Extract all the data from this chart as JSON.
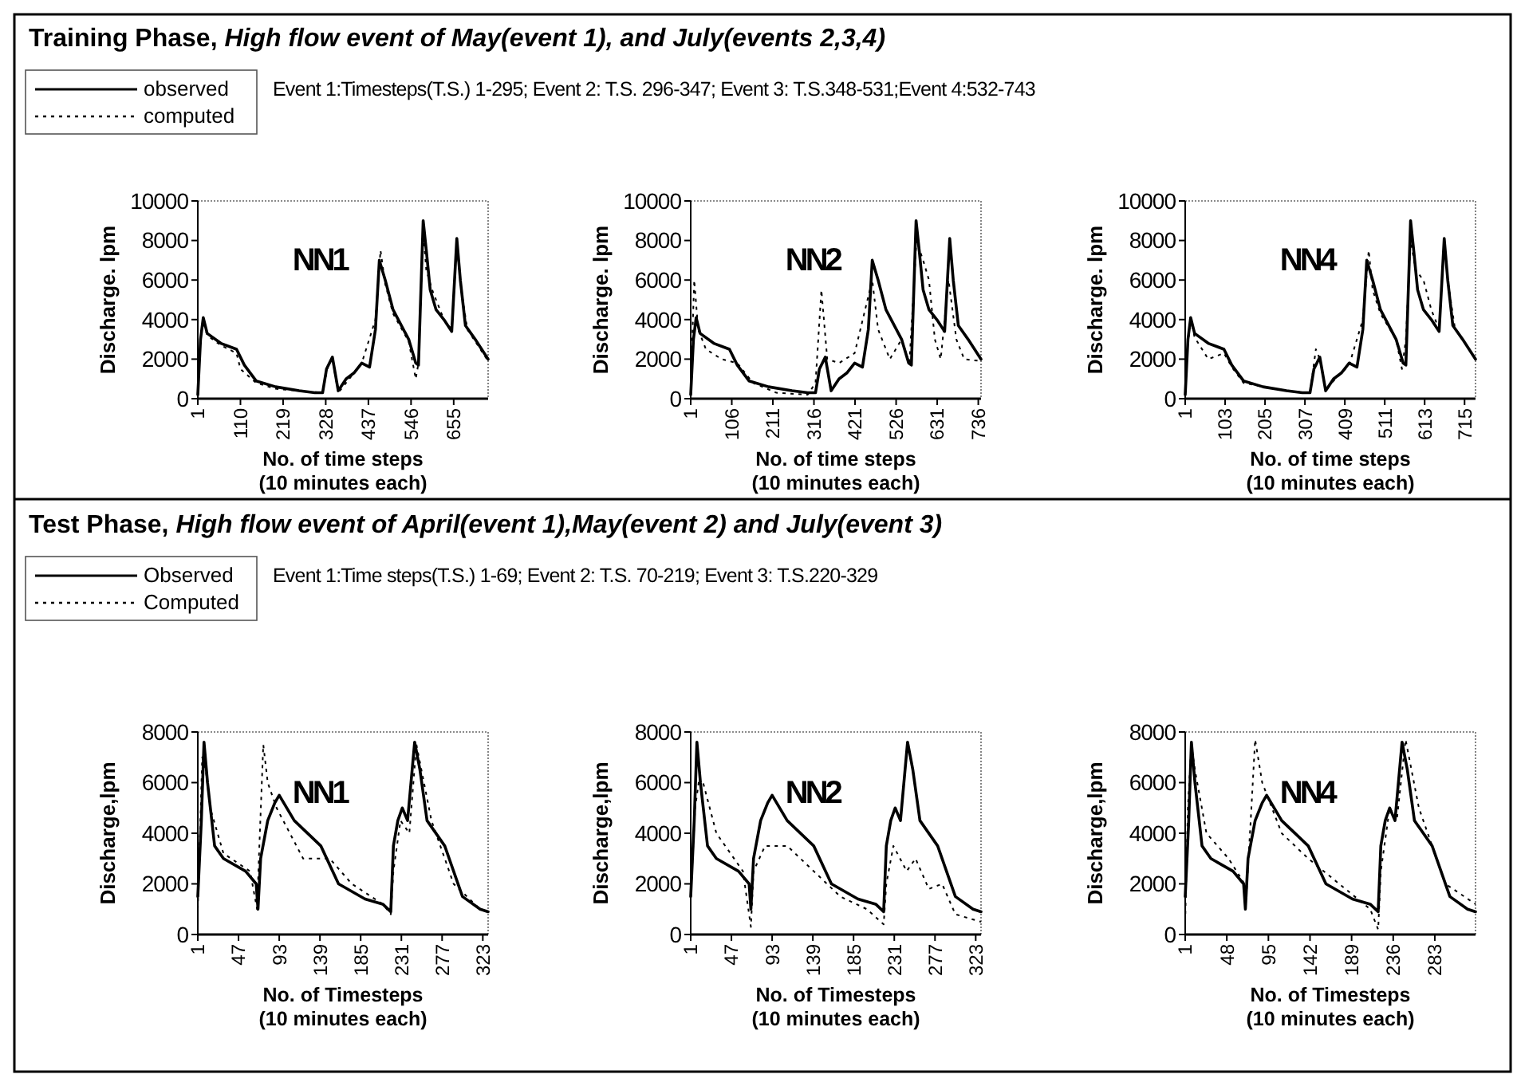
{
  "chart_data": [
    {
      "type": "line",
      "title": "Training Phase, High flow event of May(event 1), and July(events 2,3,4)",
      "subtitle": "Event 1:Timesteps(T.S.) 1-295; Event 2: T.S. 296-347; Event 3: T.S.348-531;Event 4:532-743",
      "xlabel": "No. of time steps\n(10 minutes each)",
      "ylabel": "Discharge. lpm",
      "annotations": [
        "NN1"
      ],
      "legend": "top left",
      "xlim": [
        1,
        743
      ],
      "xticks": [
        1,
        110,
        219,
        328,
        437,
        546,
        655
      ],
      "ylim": [
        0,
        10000
      ],
      "yticks": [
        0,
        2000,
        4000,
        6000,
        8000,
        10000
      ],
      "series": [
        {
          "name": "observed",
          "color": "#000000",
          "line_style": "solid",
          "x": [
            1,
            8,
            15,
            25,
            60,
            100,
            120,
            150,
            200,
            260,
            300,
            320,
            330,
            345,
            360,
            380,
            400,
            420,
            440,
            455,
            465,
            480,
            500,
            540,
            558,
            565,
            577,
            585,
            595,
            610,
            630,
            650,
            663,
            672,
            685,
            710,
            743
          ],
          "values": [
            200,
            3000,
            4100,
            3300,
            2800,
            2500,
            1700,
            900,
            600,
            400,
            300,
            300,
            1500,
            2100,
            400,
            1000,
            1300,
            1800,
            1600,
            3500,
            7000,
            6000,
            4500,
            3000,
            1800,
            1700,
            9000,
            7500,
            5500,
            4500,
            4000,
            3400,
            8100,
            6000,
            3700,
            3000,
            2000
          ]
        },
        {
          "name": "computed",
          "color": "#000000",
          "line_style": "dotted",
          "x": [
            1,
            8,
            15,
            25,
            60,
            100,
            110,
            150,
            200,
            260,
            320,
            335,
            345,
            360,
            380,
            420,
            455,
            468,
            480,
            500,
            540,
            558,
            565,
            577,
            585,
            600,
            630,
            650,
            663,
            672,
            690,
            743
          ],
          "values": [
            0,
            3000,
            3900,
            3200,
            2700,
            2300,
            1500,
            800,
            500,
            400,
            300,
            1800,
            2000,
            300,
            800,
            1800,
            4000,
            7500,
            5800,
            4300,
            2900,
            1000,
            1800,
            8500,
            6500,
            5500,
            4000,
            3500,
            7800,
            5800,
            3500,
            1900
          ]
        }
      ]
    },
    {
      "type": "line",
      "xlabel": "No. of time steps\n(10 minutes each)",
      "ylabel": "Discharge. lpm",
      "annotations": [
        "NN2"
      ],
      "xlim": [
        1,
        743
      ],
      "xticks": [
        1,
        106,
        211,
        316,
        421,
        526,
        631,
        736
      ],
      "ylim": [
        0,
        10000
      ],
      "yticks": [
        0,
        2000,
        4000,
        6000,
        8000,
        10000
      ],
      "series": [
        {
          "color": "#000000",
          "line_style": "solid",
          "x": [
            1,
            8,
            15,
            25,
            60,
            100,
            120,
            150,
            200,
            260,
            300,
            320,
            330,
            345,
            360,
            380,
            400,
            420,
            440,
            455,
            465,
            480,
            500,
            540,
            558,
            565,
            577,
            585,
            595,
            610,
            630,
            650,
            663,
            672,
            685,
            710,
            743
          ],
          "values": [
            200,
            3000,
            4100,
            3300,
            2800,
            2500,
            1700,
            900,
            600,
            400,
            300,
            300,
            1500,
            2100,
            400,
            1000,
            1300,
            1800,
            1600,
            3500,
            7000,
            6000,
            4500,
            3000,
            1800,
            1700,
            9000,
            7500,
            5500,
            4500,
            4000,
            3400,
            8100,
            6000,
            3700,
            3000,
            2000
          ]
        },
        {
          "color": "#000000",
          "line_style": "dotted",
          "x": [
            1,
            10,
            20,
            40,
            80,
            120,
            160,
            220,
            300,
            320,
            335,
            350,
            380,
            420,
            465,
            480,
            510,
            540,
            560,
            578,
            595,
            610,
            625,
            640,
            660,
            680,
            700,
            743
          ],
          "values": [
            500,
            6000,
            3500,
            2500,
            2000,
            1800,
            800,
            300,
            200,
            800,
            5500,
            2000,
            1800,
            2300,
            6000,
            3500,
            2000,
            3000,
            1800,
            8000,
            7000,
            6000,
            3000,
            2000,
            6000,
            3000,
            2000,
            1900
          ]
        }
      ]
    },
    {
      "type": "line",
      "xlabel": "No. of time steps\n(10 minutes each)",
      "ylabel": "Discharge. lpm",
      "annotations": [
        "NN4"
      ],
      "xlim": [
        1,
        743
      ],
      "xticks": [
        1,
        103,
        205,
        307,
        409,
        511,
        613,
        715
      ],
      "ylim": [
        0,
        10000
      ],
      "yticks": [
        0,
        2000,
        4000,
        6000,
        8000,
        10000
      ],
      "series": [
        {
          "color": "#000000",
          "line_style": "solid",
          "x": [
            1,
            8,
            15,
            25,
            60,
            100,
            120,
            150,
            200,
            260,
            300,
            320,
            330,
            345,
            360,
            380,
            400,
            420,
            440,
            455,
            465,
            480,
            500,
            540,
            558,
            565,
            577,
            585,
            595,
            610,
            630,
            650,
            663,
            672,
            685,
            710,
            743
          ],
          "values": [
            200,
            3000,
            4100,
            3300,
            2800,
            2500,
            1700,
            900,
            600,
            400,
            300,
            300,
            1500,
            2100,
            400,
            1000,
            1300,
            1800,
            1600,
            3500,
            7000,
            6000,
            4500,
            3000,
            1800,
            1700,
            9000,
            7500,
            5500,
            4500,
            4000,
            3400,
            8100,
            6000,
            3700,
            3000,
            2000
          ]
        },
        {
          "color": "#000000",
          "line_style": "dotted",
          "x": [
            1,
            8,
            15,
            25,
            60,
            100,
            120,
            150,
            200,
            260,
            320,
            335,
            345,
            360,
            380,
            420,
            455,
            470,
            480,
            500,
            540,
            555,
            565,
            577,
            590,
            610,
            630,
            650,
            663,
            672,
            690,
            743
          ],
          "values": [
            300,
            2800,
            4000,
            3100,
            2000,
            2300,
            1600,
            800,
            600,
            400,
            300,
            2500,
            2000,
            400,
            900,
            1700,
            4000,
            7500,
            5500,
            4300,
            3000,
            1500,
            3000,
            8000,
            6500,
            6000,
            4500,
            3500,
            8000,
            6000,
            3600,
            2000
          ]
        }
      ]
    },
    {
      "type": "line",
      "title": "Test Phase, High flow event of April(event 1),May(event 2) and July(event 3)",
      "subtitle": "Event 1:Time steps(T.S.) 1-69; Event 2: T.S. 70-219; Event 3: T.S.220-329",
      "xlabel": "No. of Timesteps\n(10 minutes each)",
      "ylabel": "Discharge,lpm",
      "annotations": [
        "NN1"
      ],
      "legend": "top left",
      "xlim": [
        1,
        329
      ],
      "xticks": [
        1,
        47,
        93,
        139,
        185,
        231,
        277,
        323
      ],
      "ylim": [
        0,
        8000
      ],
      "yticks": [
        0,
        2000,
        4000,
        6000,
        8000
      ],
      "series": [
        {
          "name": "Observed",
          "color": "#000000",
          "line_style": "solid",
          "x": [
            1,
            5,
            8,
            12,
            20,
            30,
            55,
            67,
            69,
            72,
            80,
            88,
            93,
            110,
            140,
            160,
            190,
            210,
            219,
            222,
            227,
            232,
            238,
            246,
            252,
            260,
            280,
            300,
            320,
            329
          ],
          "values": [
            1500,
            4500,
            7600,
            6000,
            3500,
            3000,
            2500,
            2000,
            1000,
            3000,
            4500,
            5200,
            5500,
            4500,
            3500,
            2000,
            1400,
            1200,
            900,
            3500,
            4500,
            5000,
            4500,
            7600,
            6500,
            4500,
            3500,
            1500,
            1000,
            900
          ]
        },
        {
          "name": "Computed",
          "color": "#000000",
          "line_style": "dotted",
          "x": [
            1,
            6,
            10,
            15,
            30,
            60,
            68,
            70,
            75,
            80,
            90,
            120,
            150,
            175,
            210,
            219,
            222,
            230,
            240,
            248,
            265,
            290,
            320,
            329
          ],
          "values": [
            1000,
            7000,
            6500,
            5000,
            3200,
            2500,
            1000,
            3000,
            7500,
            6000,
            5000,
            3000,
            3000,
            2000,
            1200,
            800,
            2500,
            4500,
            4000,
            7500,
            4500,
            2000,
            1000,
            900
          ]
        }
      ]
    },
    {
      "type": "line",
      "xlabel": "No. of Timesteps\n(10 minutes each)",
      "ylabel": "Discharge,lpm",
      "annotations": [
        "NN2"
      ],
      "xlim": [
        1,
        329
      ],
      "xticks": [
        1,
        47,
        93,
        139,
        185,
        231,
        277,
        323
      ],
      "ylim": [
        0,
        8000
      ],
      "yticks": [
        0,
        2000,
        4000,
        6000,
        8000
      ],
      "series": [
        {
          "color": "#000000",
          "line_style": "solid",
          "x": [
            1,
            5,
            8,
            12,
            20,
            30,
            55,
            67,
            69,
            72,
            80,
            88,
            93,
            110,
            140,
            160,
            190,
            210,
            219,
            222,
            227,
            232,
            238,
            246,
            252,
            260,
            280,
            300,
            320,
            329
          ],
          "values": [
            1500,
            4500,
            7600,
            6000,
            3500,
            3000,
            2500,
            2000,
            1000,
            3000,
            4500,
            5200,
            5500,
            4500,
            3500,
            2000,
            1400,
            1200,
            900,
            3500,
            4500,
            5000,
            4500,
            7600,
            6500,
            4500,
            3500,
            1500,
            1000,
            900
          ]
        },
        {
          "color": "#000000",
          "line_style": "dotted",
          "x": [
            1,
            6,
            10,
            15,
            30,
            60,
            69,
            72,
            85,
            110,
            140,
            170,
            200,
            219,
            222,
            230,
            245,
            255,
            270,
            285,
            300,
            329
          ],
          "values": [
            1500,
            5000,
            6000,
            6000,
            4000,
            2500,
            300,
            2500,
            3500,
            3500,
            2500,
            1500,
            1000,
            400,
            2000,
            3500,
            2500,
            3000,
            1800,
            2000,
            800,
            500
          ]
        }
      ]
    },
    {
      "type": "line",
      "xlabel": "No. of Timesteps\n(10 minutes each)",
      "ylabel": "Discharge,lpm",
      "annotations": [
        "NN4"
      ],
      "xlim": [
        1,
        329
      ],
      "xticks": [
        1,
        48,
        95,
        142,
        189,
        236,
        283
      ],
      "ylim": [
        0,
        8000
      ],
      "yticks": [
        0,
        2000,
        4000,
        6000,
        8000
      ],
      "series": [
        {
          "color": "#000000",
          "line_style": "solid",
          "x": [
            1,
            5,
            8,
            12,
            20,
            30,
            55,
            67,
            69,
            72,
            80,
            88,
            93,
            110,
            140,
            160,
            190,
            210,
            219,
            222,
            227,
            232,
            238,
            246,
            252,
            260,
            280,
            300,
            320,
            329
          ],
          "values": [
            1500,
            4500,
            7600,
            6000,
            3500,
            3000,
            2500,
            2000,
            1000,
            3000,
            4500,
            5200,
            5500,
            4500,
            3500,
            2000,
            1400,
            1200,
            900,
            3500,
            4500,
            5000,
            4500,
            7600,
            6500,
            4500,
            3500,
            1500,
            1000,
            900
          ]
        },
        {
          "color": "#000000",
          "line_style": "dotted",
          "x": [
            1,
            4,
            8,
            12,
            25,
            50,
            68,
            70,
            75,
            80,
            88,
            110,
            140,
            175,
            210,
            219,
            222,
            232,
            240,
            250,
            265,
            295,
            329
          ],
          "values": [
            500,
            5000,
            7500,
            6500,
            4000,
            3000,
            2000,
            1500,
            4500,
            7700,
            6000,
            4000,
            3000,
            2000,
            1000,
            200,
            2500,
            5000,
            4500,
            7700,
            5000,
            2000,
            1200
          ]
        }
      ]
    }
  ]
}
